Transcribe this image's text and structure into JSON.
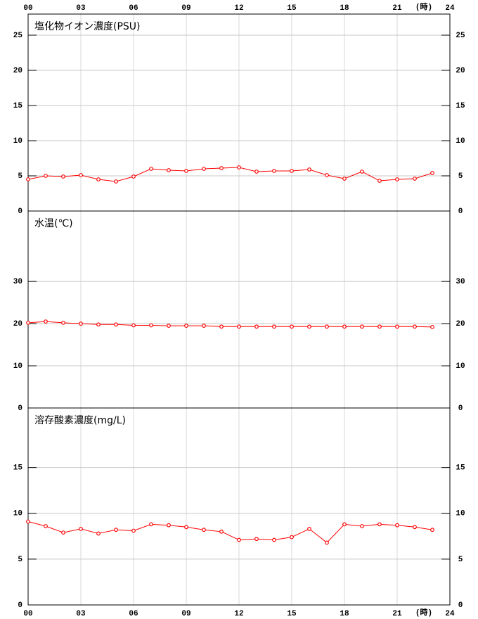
{
  "chart_data": [
    {
      "type": "line",
      "title": "塩化物イオン濃度(PSU)",
      "xlabel": "(時)",
      "xaxis_position": "top",
      "x": [
        0,
        1,
        2,
        3,
        4,
        5,
        6,
        7,
        8,
        9,
        10,
        11,
        12,
        13,
        14,
        15,
        16,
        17,
        18,
        19,
        20,
        21,
        22,
        23
      ],
      "series": [
        {
          "color": "#ff0000",
          "values": [
            4.5,
            5.0,
            4.9,
            5.1,
            4.5,
            4.2,
            4.9,
            6.0,
            5.8,
            5.7,
            6.0,
            6.1,
            6.2,
            5.6,
            5.7,
            5.7,
            5.9,
            5.1,
            4.6,
            5.6,
            4.3,
            4.5,
            4.6,
            5.4
          ]
        }
      ],
      "xlim": [
        0,
        24
      ],
      "xticks": [
        {
          "value": 0,
          "label": "00"
        },
        {
          "value": 3,
          "label": "03"
        },
        {
          "value": 6,
          "label": "06"
        },
        {
          "value": 9,
          "label": "09"
        },
        {
          "value": 12,
          "label": "12"
        },
        {
          "value": 15,
          "label": "15"
        },
        {
          "value": 18,
          "label": "18"
        },
        {
          "value": 21,
          "label": "21"
        },
        24
      ],
      "ylim": [
        0,
        28
      ],
      "yticks": [
        0,
        5,
        10,
        15,
        20,
        25
      ],
      "grid": true
    },
    {
      "type": "line",
      "title": "水温(℃)",
      "x": [
        0,
        1,
        2,
        3,
        4,
        5,
        6,
        7,
        8,
        9,
        10,
        11,
        12,
        13,
        14,
        15,
        16,
        17,
        18,
        19,
        20,
        21,
        22,
        23
      ],
      "series": [
        {
          "color": "#ff0000",
          "values": [
            20.2,
            20.5,
            20.2,
            20.0,
            19.8,
            19.8,
            19.6,
            19.6,
            19.5,
            19.5,
            19.5,
            19.3,
            19.3,
            19.3,
            19.3,
            19.3,
            19.3,
            19.3,
            19.3,
            19.3,
            19.3,
            19.3,
            19.3,
            19.2
          ]
        }
      ],
      "xlim": [
        0,
        24
      ],
      "xticks": [
        0,
        3,
        6,
        9,
        12,
        15,
        18,
        21,
        24
      ],
      "ylim": [
        0,
        46.7
      ],
      "yticks": [
        0,
        10,
        20,
        30
      ],
      "grid": true
    },
    {
      "type": "line",
      "title": "溶存酸素濃度(mg/L)",
      "xlabel": "(時)",
      "xaxis_position": "bottom",
      "x": [
        0,
        1,
        2,
        3,
        4,
        5,
        6,
        7,
        8,
        9,
        10,
        11,
        12,
        13,
        14,
        15,
        16,
        17,
        18,
        19,
        20,
        21,
        22,
        23
      ],
      "series": [
        {
          "color": "#ff0000",
          "values": [
            9.1,
            8.6,
            7.9,
            8.3,
            7.8,
            8.2,
            8.1,
            8.8,
            8.7,
            8.5,
            8.2,
            8.0,
            7.1,
            7.2,
            7.1,
            7.4,
            8.3,
            6.8,
            8.8,
            8.6,
            8.8,
            8.7,
            8.5,
            8.2
          ]
        }
      ],
      "xlim": [
        0,
        24
      ],
      "xticks": [
        {
          "value": 0,
          "label": "00"
        },
        {
          "value": 3,
          "label": "03"
        },
        {
          "value": 6,
          "label": "06"
        },
        {
          "value": 9,
          "label": "09"
        },
        {
          "value": 12,
          "label": "12"
        },
        {
          "value": 15,
          "label": "15"
        },
        {
          "value": 18,
          "label": "18"
        },
        {
          "value": 21,
          "label": "21"
        },
        24
      ],
      "ylim": [
        0,
        21.5
      ],
      "yticks": [
        0,
        5,
        10,
        15
      ],
      "grid": true
    }
  ]
}
